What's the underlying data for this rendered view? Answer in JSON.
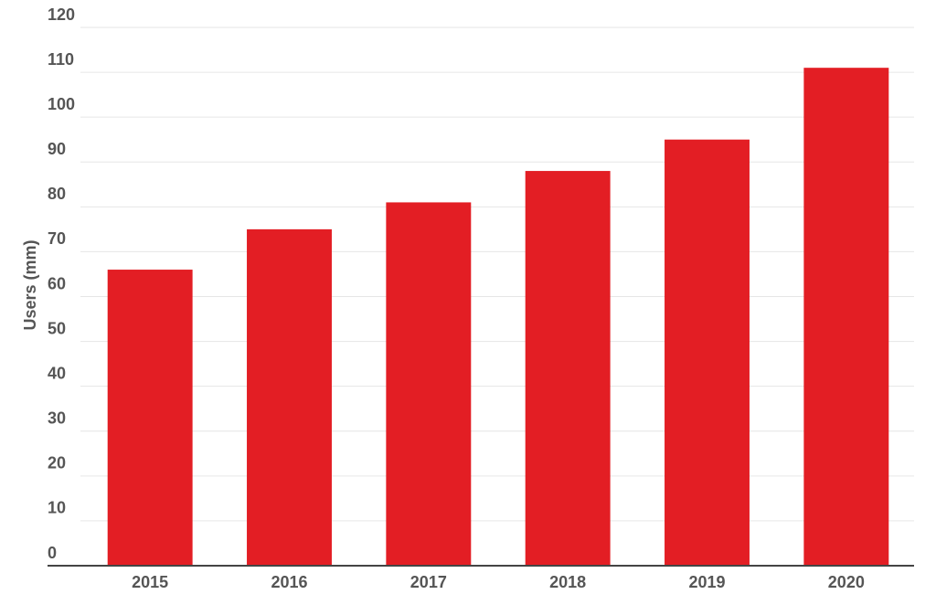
{
  "chart_data": {
    "type": "bar",
    "y_label": "Users (mm)",
    "categories": [
      "2015",
      "2016",
      "2017",
      "2018",
      "2019",
      "2020"
    ],
    "values": [
      66,
      75,
      81,
      88,
      95,
      111
    ],
    "color": "#e31e24",
    "ylim": [
      0,
      120
    ],
    "yticks": [
      0,
      10,
      20,
      30,
      40,
      50,
      60,
      70,
      80,
      90,
      100,
      110,
      120
    ],
    "grid": true
  }
}
